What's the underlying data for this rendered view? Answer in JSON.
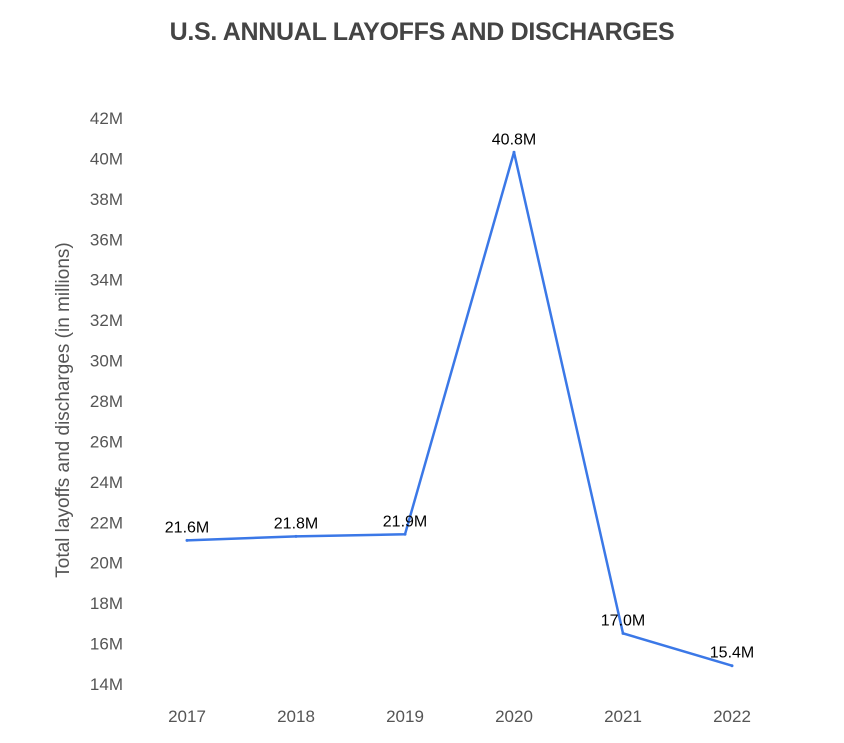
{
  "chart_data": {
    "type": "line",
    "title": "U.S. ANNUAL LAYOFFS AND DISCHARGES",
    "xlabel": "",
    "ylabel": "Total layoffs and discharges (in millions)",
    "categories": [
      "2017",
      "2018",
      "2019",
      "2020",
      "2021",
      "2022"
    ],
    "values": [
      21.6,
      21.8,
      21.9,
      40.8,
      17.0,
      15.4
    ],
    "data_labels": [
      "21.6M",
      "21.8M",
      "21.9M",
      "40.8M",
      "17.0M",
      "15.4M"
    ],
    "ylim": [
      14,
      42
    ],
    "yticks": [
      14,
      16,
      18,
      20,
      22,
      24,
      26,
      28,
      30,
      32,
      34,
      36,
      38,
      40,
      42
    ],
    "ytick_labels": [
      "14M",
      "16M",
      "18M",
      "20M",
      "22M",
      "24M",
      "26M",
      "28M",
      "30M",
      "32M",
      "34M",
      "36M",
      "38M",
      "40M",
      "42M"
    ],
    "grid": false,
    "legend": "none",
    "line_color": "#3b78e7"
  }
}
